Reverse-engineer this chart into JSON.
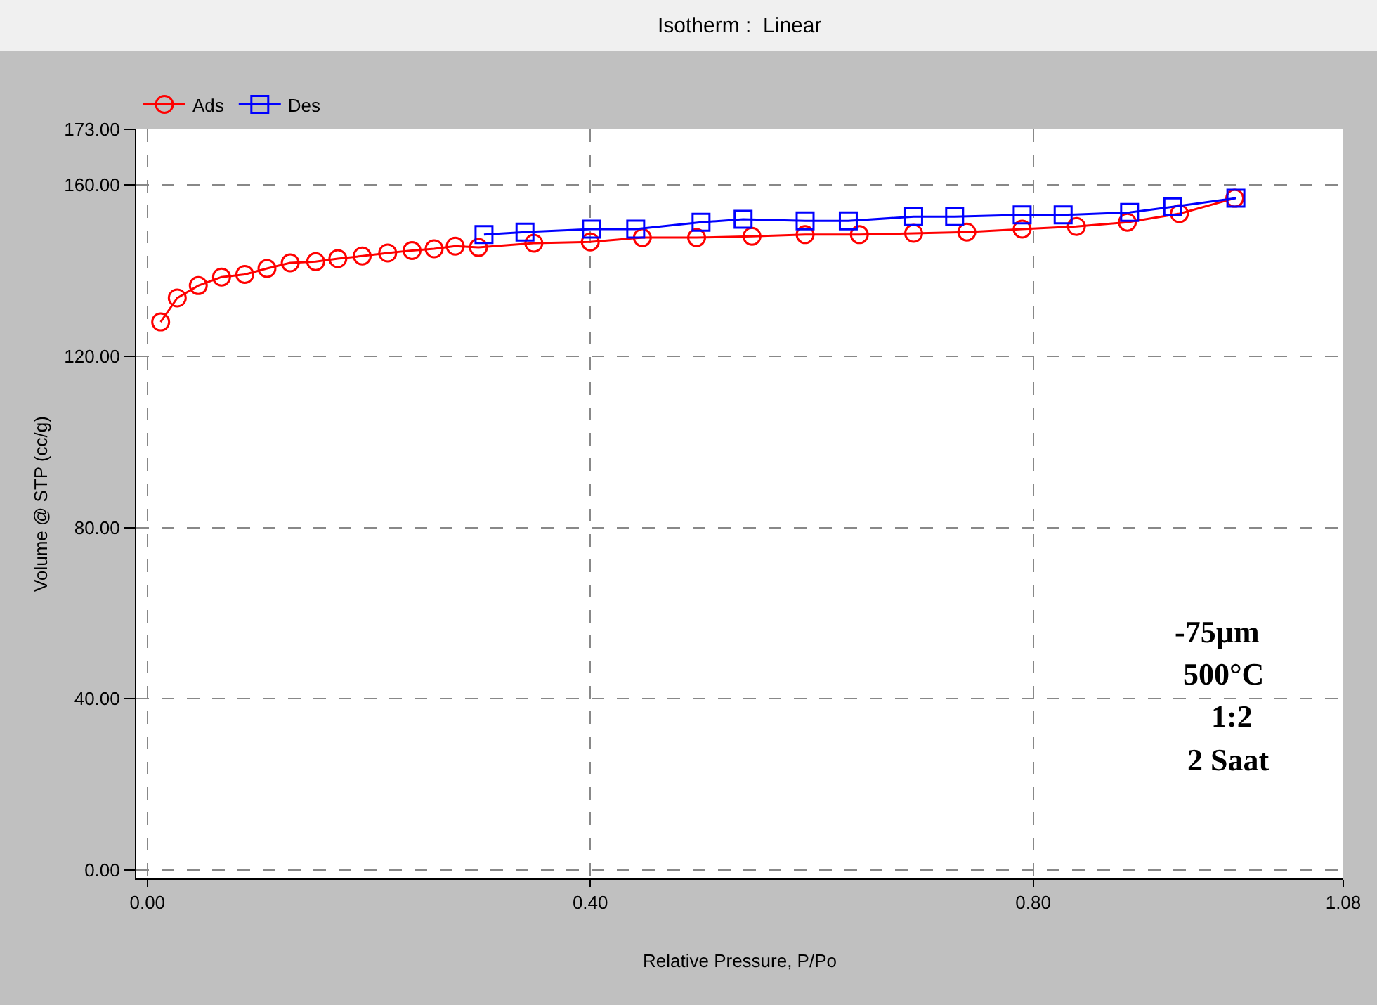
{
  "chart_data": {
    "type": "line",
    "title": "Isotherm :  Linear",
    "xlabel": "Relative Pressure, P/Po",
    "ylabel": "Volume @ STP (cc/g)",
    "xlim": [
      -0.01,
      1.08
    ],
    "xticks": [
      {
        "value": 0,
        "label": "0.00"
      },
      {
        "value": 0.4,
        "label": "0.40"
      },
      {
        "value": 0.8,
        "label": "0.80"
      },
      {
        "value": 1.08,
        "label": "1.08"
      }
    ],
    "ylim": [
      -2,
      173
    ],
    "yticks": [
      {
        "value": 0,
        "label": "0.00"
      },
      {
        "value": 40,
        "label": "40.00"
      },
      {
        "value": 80,
        "label": "80.00"
      },
      {
        "value": 120,
        "label": "120.00"
      },
      {
        "value": 160,
        "label": "160.00"
      },
      {
        "value": 173,
        "label": "173.00"
      }
    ],
    "grid": true,
    "legend": "top left",
    "line_style": "solid",
    "annotations": [
      "-75µm",
      "500°C",
      "1:2",
      "2 Saat"
    ],
    "series": [
      {
        "name": "Ads",
        "color": "#ff0000",
        "marker": "circle",
        "x": [
          0.012,
          0.027,
          0.046,
          0.067,
          0.088,
          0.108,
          0.129,
          0.152,
          0.172,
          0.194,
          0.217,
          0.239,
          0.259,
          0.278,
          0.299,
          0.349,
          0.4,
          0.447,
          0.496,
          0.546,
          0.594,
          0.643,
          0.692,
          0.74,
          0.79,
          0.839,
          0.885,
          0.932,
          0.982
        ],
        "values": [
          128.0,
          133.6,
          136.5,
          138.5,
          139.1,
          140.5,
          141.8,
          142.1,
          142.8,
          143.4,
          144.1,
          144.7,
          145.1,
          145.7,
          145.4,
          146.4,
          146.7,
          147.7,
          147.7,
          148.0,
          148.4,
          148.4,
          148.7,
          149.0,
          149.7,
          150.3,
          151.3,
          153.3,
          156.9
        ]
      },
      {
        "name": "Des",
        "color": "#0000ff",
        "marker": "square",
        "x": [
          0.304,
          0.341,
          0.401,
          0.441,
          0.5,
          0.538,
          0.594,
          0.633,
          0.692,
          0.729,
          0.79,
          0.827,
          0.887,
          0.926,
          0.983
        ],
        "values": [
          148.4,
          149.0,
          149.7,
          149.7,
          151.3,
          152.0,
          151.6,
          151.6,
          152.6,
          152.6,
          153.0,
          153.0,
          153.6,
          154.9,
          156.9
        ]
      }
    ]
  }
}
